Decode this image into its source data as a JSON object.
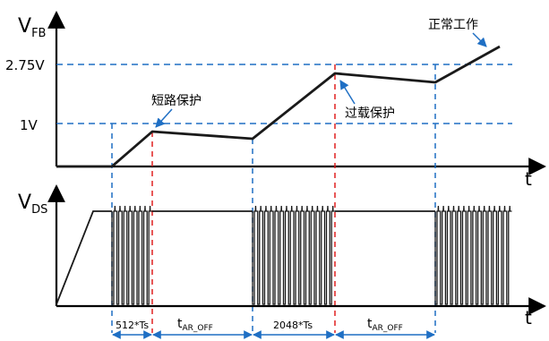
{
  "axes": {
    "top_y_label_main": "V",
    "top_y_label_sub": "FB",
    "top_x_label": "t",
    "bottom_y_label_main": "V",
    "bottom_y_label_sub": "DS",
    "bottom_x_label": "t"
  },
  "levels": {
    "upper": "2.75V",
    "lower": "1V"
  },
  "annotations": {
    "short_protect": "短路保护",
    "overload_protect": "过载保护",
    "normal_work": "正常工作"
  },
  "intervals": {
    "first": "512*Ts",
    "second_main": "t",
    "second_sub": "AR_OFF",
    "third": "2048*Ts",
    "fourth_main": "t",
    "fourth_sub": "AR_OFF"
  },
  "colors": {
    "axis": "#000000",
    "waveform": "#1a1a1a",
    "blue_guide": "#1f6fc4",
    "red_guide": "#e02020",
    "annotation_arrow": "#1f6fc4"
  }
}
